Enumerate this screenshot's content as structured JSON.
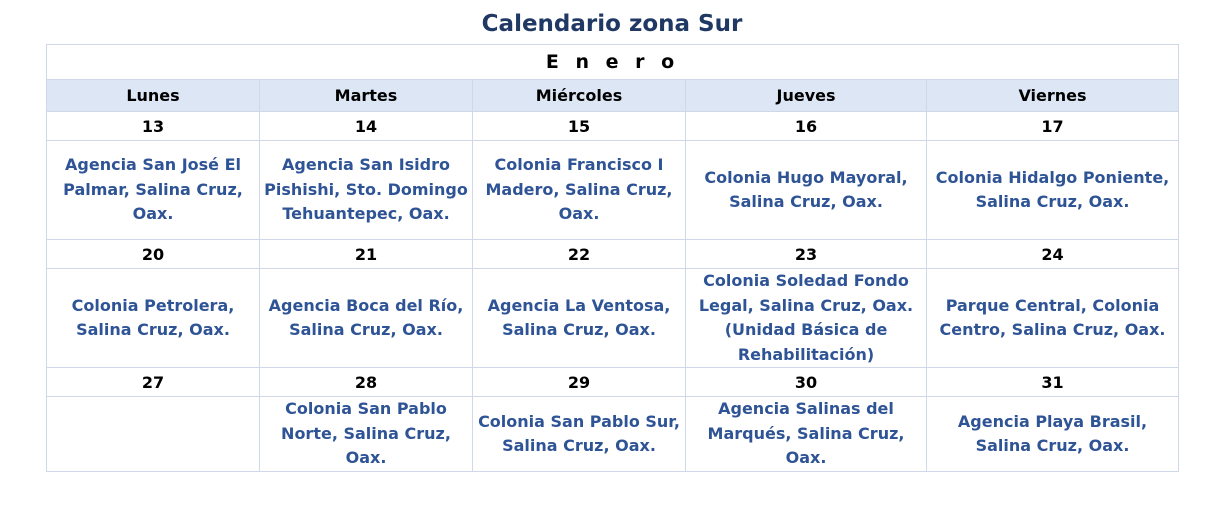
{
  "title": "Calendario zona Sur",
  "month": "E n e r o",
  "days": [
    "Lunes",
    "Martes",
    "Miércoles",
    "Jueves",
    "Viernes"
  ],
  "weeks": [
    {
      "dates": [
        "13",
        "14",
        "15",
        "16",
        "17"
      ],
      "locations": [
        "Agencia San José El Palmar, Salina Cruz, Oax.",
        "Agencia San Isidro Pishishi, Sto. Domingo Tehuantepec, Oax.",
        "Colonia Francisco I Madero, Salina Cruz, Oax.",
        "Colonia Hugo Mayoral, Salina Cruz, Oax.",
        "Colonia Hidalgo Poniente, Salina Cruz, Oax."
      ]
    },
    {
      "dates": [
        "20",
        "21",
        "22",
        "23",
        "24"
      ],
      "locations": [
        "Colonia Petrolera, Salina Cruz, Oax.",
        "Agencia Boca del Río, Salina Cruz, Oax.",
        "Agencia La Ventosa, Salina Cruz, Oax.",
        "Colonia Soledad Fondo Legal, Salina Cruz, Oax. (Unidad Básica de Rehabilitación)",
        "Parque Central, Colonia Centro, Salina Cruz, Oax."
      ]
    },
    {
      "dates": [
        "27",
        "28",
        "29",
        "30",
        "31"
      ],
      "locations": [
        "",
        "Colonia San Pablo Norte, Salina Cruz, Oax.",
        "Colonia San Pablo Sur, Salina Cruz, Oax.",
        "Agencia Salinas del Marqués, Salina Cruz, Oax.",
        "Agencia Playa Brasil, Salina Cruz, Oax."
      ]
    }
  ]
}
